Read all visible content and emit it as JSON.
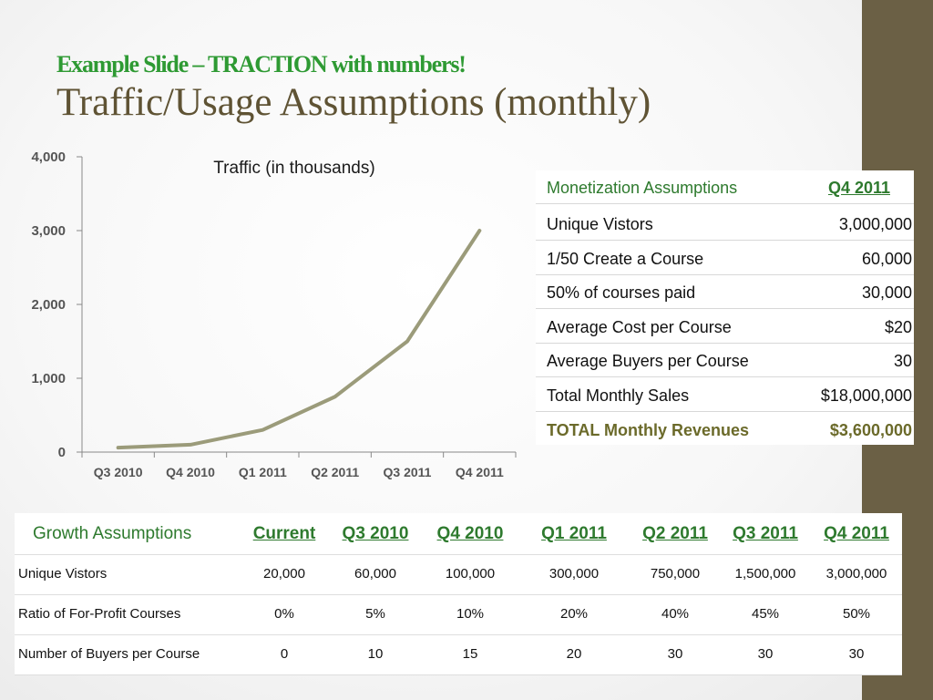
{
  "slide": {
    "subtitle": "Example Slide – TRACTION with numbers!",
    "title": "Traffic/Usage Assumptions (monthly)",
    "accent_color": "#2e9a33",
    "title_color": "#5f5334",
    "sidebar_color": "#6b6045"
  },
  "chart_data": {
    "type": "line",
    "title": "Traffic (in thousands)",
    "categories": [
      "Q3 2010",
      "Q4 2010",
      "Q1 2011",
      "Q2 2011",
      "Q3 2011",
      "Q4 2011"
    ],
    "values": [
      60,
      100,
      300,
      750,
      1500,
      3000
    ],
    "yticks": [
      "0",
      "1,000",
      "2,000",
      "3,000",
      "4,000"
    ],
    "ylim": [
      0,
      4000
    ],
    "grid": false,
    "line_color": "#9b9b7a"
  },
  "monetization": {
    "header_label": "Monetization Assumptions",
    "header_period": "Q4 2011",
    "rows": [
      {
        "label": "Unique Vistors",
        "value": "3,000,000"
      },
      {
        "label": "1/50 Create a Course",
        "value": "60,000"
      },
      {
        "label": "50% of courses paid",
        "value": "30,000"
      },
      {
        "label": "Average Cost per Course",
        "value": "$20"
      },
      {
        "label": "Average Buyers per Course",
        "value": "30"
      },
      {
        "label": "Total Monthly Sales",
        "value": "$18,000,000"
      }
    ],
    "total": {
      "label": "TOTAL Monthly Revenues",
      "value": "$3,600,000"
    }
  },
  "growth": {
    "header_label": "Growth Assumptions",
    "columns": [
      "Current",
      "Q3 2010",
      "Q4 2010",
      "Q1 2011",
      "Q2 2011",
      "Q3 2011",
      "Q4 2011"
    ],
    "rows": [
      {
        "label": "Unique Vistors",
        "values": [
          "20,000",
          "60,000",
          "100,000",
          "300,000",
          "750,000",
          "1,500,000",
          "3,000,000"
        ]
      },
      {
        "label": "Ratio of For-Profit Courses",
        "values": [
          "0%",
          "5%",
          "10%",
          "20%",
          "40%",
          "45%",
          "50%"
        ]
      },
      {
        "label": "Number of Buyers per Course",
        "values": [
          "0",
          "10",
          "15",
          "20",
          "30",
          "30",
          "30"
        ]
      }
    ]
  }
}
